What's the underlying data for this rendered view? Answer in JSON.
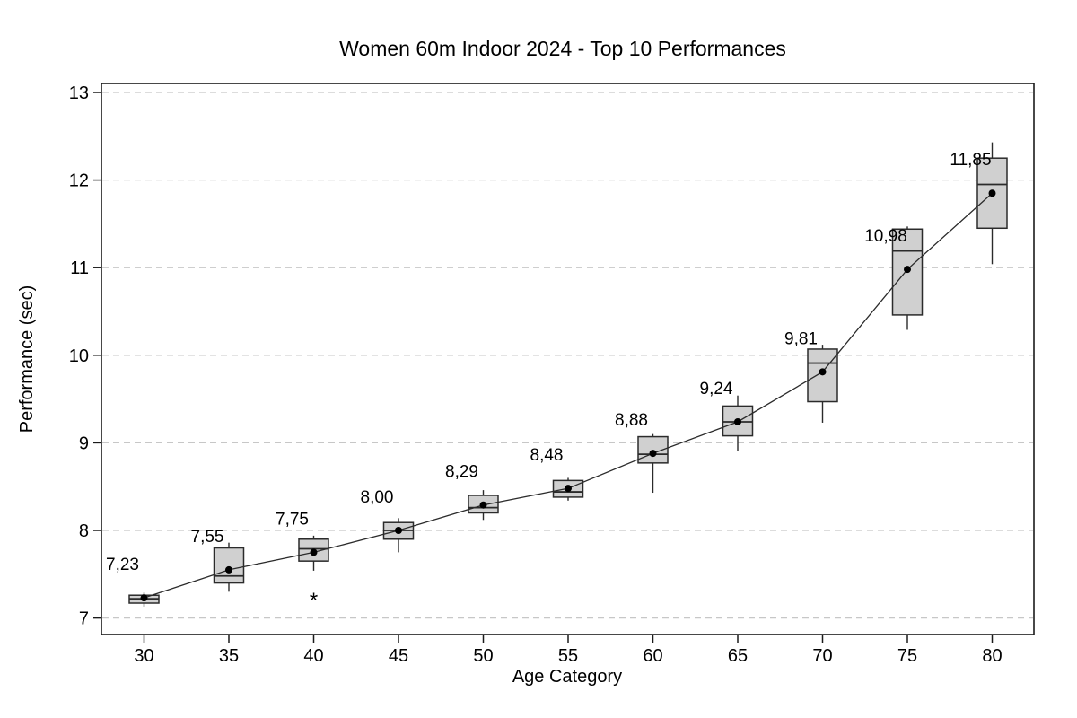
{
  "chart_data": {
    "type": "boxplot",
    "title": "Women 60m Indoor 2024 - Top 10 Performances",
    "xlabel": "Age Category",
    "ylabel": "Performance (sec)",
    "ylim": [
      6.8,
      13.1
    ],
    "yticks": [
      7,
      8,
      9,
      10,
      11,
      12,
      13
    ],
    "xticks": [
      30,
      35,
      40,
      45,
      50,
      55,
      60,
      65,
      70,
      75,
      80
    ],
    "grid": "horizontal-dashed",
    "legend": "none",
    "decimal_separator": ",",
    "mean_line": true,
    "categories": [
      30,
      35,
      40,
      45,
      50,
      55,
      60,
      65,
      70,
      75,
      80
    ],
    "boxes": [
      {
        "age": 30,
        "whisker_low": 7.13,
        "q1": 7.17,
        "median": 7.22,
        "q3": 7.26,
        "whisker_high": 7.29,
        "mean": 7.23,
        "mean_label": "7,23",
        "outliers": []
      },
      {
        "age": 35,
        "whisker_low": 7.3,
        "q1": 7.4,
        "median": 7.48,
        "q3": 7.8,
        "whisker_high": 7.86,
        "mean": 7.55,
        "mean_label": "7,55",
        "outliers": []
      },
      {
        "age": 40,
        "whisker_low": 7.54,
        "q1": 7.65,
        "median": 7.79,
        "q3": 7.9,
        "whisker_high": 7.94,
        "mean": 7.75,
        "mean_label": "7,75",
        "outliers": [
          7.23
        ]
      },
      {
        "age": 45,
        "whisker_low": 7.75,
        "q1": 7.9,
        "median": 8.0,
        "q3": 8.09,
        "whisker_high": 8.14,
        "mean": 8.0,
        "mean_label": "8,00",
        "outliers": []
      },
      {
        "age": 50,
        "whisker_low": 8.12,
        "q1": 8.2,
        "median": 8.26,
        "q3": 8.4,
        "whisker_high": 8.46,
        "mean": 8.29,
        "mean_label": "8,29",
        "outliers": []
      },
      {
        "age": 55,
        "whisker_low": 8.34,
        "q1": 8.38,
        "median": 8.44,
        "q3": 8.57,
        "whisker_high": 8.6,
        "mean": 8.48,
        "mean_label": "8,48",
        "outliers": []
      },
      {
        "age": 60,
        "whisker_low": 8.43,
        "q1": 8.77,
        "median": 8.87,
        "q3": 9.07,
        "whisker_high": 9.1,
        "mean": 8.88,
        "mean_label": "8,88",
        "outliers": []
      },
      {
        "age": 65,
        "whisker_low": 8.91,
        "q1": 9.08,
        "median": 9.24,
        "q3": 9.42,
        "whisker_high": 9.54,
        "mean": 9.24,
        "mean_label": "9,24",
        "outliers": []
      },
      {
        "age": 70,
        "whisker_low": 9.23,
        "q1": 9.47,
        "median": 9.91,
        "q3": 10.07,
        "whisker_high": 10.12,
        "mean": 9.81,
        "mean_label": "9,81",
        "outliers": []
      },
      {
        "age": 75,
        "whisker_low": 10.29,
        "q1": 10.46,
        "median": 11.19,
        "q3": 11.44,
        "whisker_high": 11.47,
        "mean": 10.98,
        "mean_label": "10,98",
        "outliers": []
      },
      {
        "age": 80,
        "whisker_low": 11.04,
        "q1": 11.45,
        "median": 11.95,
        "q3": 12.25,
        "whisker_high": 12.43,
        "mean": 11.85,
        "mean_label": "11,85",
        "outliers": []
      }
    ],
    "colors": {
      "background": "#ffffff",
      "box_fill": "#d0d0d0",
      "box_stroke": "#2b2b2b",
      "median": "#2b2b2b",
      "mean_dot": "#000000",
      "trend_line": "#2b2b2b",
      "grid": "#c7c7c7",
      "axis": "#1a1a1a",
      "text": "#000000"
    }
  }
}
